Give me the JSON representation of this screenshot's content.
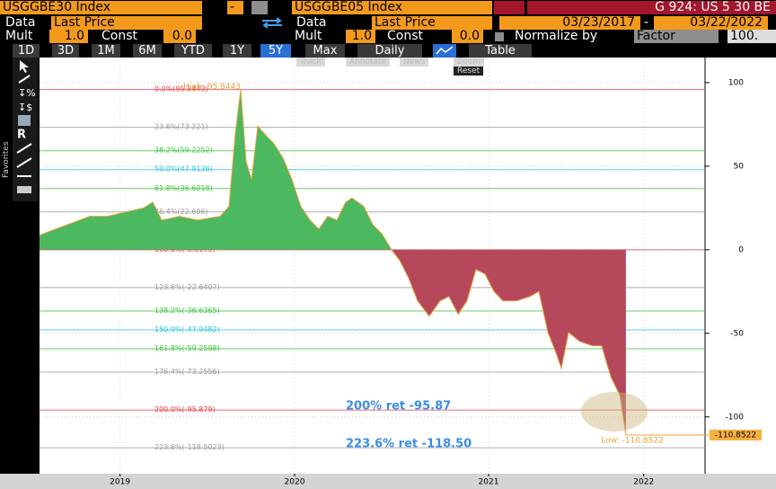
{
  "ui": {
    "row1": {
      "security1": "USGGBE30 Index",
      "dash": "-",
      "security2": "USGGBE05 Index",
      "chart_id": "G 924: US 5 30 BE"
    },
    "row2": {
      "data1": "Data",
      "field1": "Last Price",
      "data2": "Data",
      "field2": "Last Price",
      "start": "03/23/2017",
      "dash": "-",
      "end": "03/22/2022"
    },
    "row3": {
      "mult1": "Mult",
      "mult1_val": "1.0",
      "const1": "Const",
      "const1_val": "0.0",
      "mult2": "Mult",
      "mult2_val": "1.0",
      "const2": "Const",
      "const2_val": "0.0",
      "normalize": "Normalize by",
      "factor": "Factor",
      "factor_val": "100."
    },
    "periods": [
      "1D",
      "3D",
      "1M",
      "6M",
      "YTD",
      "1Y",
      "5Y",
      "Max"
    ],
    "frequency": "Daily",
    "table": "Table",
    "tools": [
      "Track",
      "Annotate",
      "News",
      "Zoom"
    ],
    "reset": "Reset",
    "favorites": "Favorites"
  },
  "chart_data": {
    "type": "area",
    "x": [
      2019.185,
      2019.259,
      2019.352,
      2019.444,
      2019.537,
      2019.63,
      2019.722,
      2019.769,
      2019.815,
      2019.907,
      2020.0,
      2020.116,
      2020.162,
      2020.194,
      2020.222,
      2020.25,
      2020.278,
      2020.31,
      2020.347,
      2020.394,
      2020.44,
      2020.486,
      2020.532,
      2020.579,
      2020.625,
      2020.671,
      2020.718,
      2020.764,
      2020.796,
      2020.856,
      2020.903,
      2020.949,
      2021.0,
      2021.042,
      2021.088,
      2021.134,
      2021.194,
      2021.25,
      2021.296,
      2021.343,
      2021.389,
      2021.435,
      2021.481,
      2021.528,
      2021.574,
      2021.644,
      2021.713,
      2021.759,
      2021.806,
      2021.852,
      2021.875,
      2021.912,
      2021.968,
      2022.037,
      2022.083,
      2022.13,
      2022.176,
      2022.208
    ],
    "values": [
      8.6,
      12,
      16,
      20,
      20,
      22.6,
      25,
      28.5,
      17.7,
      20,
      17.7,
      20,
      26,
      69,
      95.8443,
      52.7,
      42,
      74,
      69,
      63.4,
      55,
      42,
      26,
      17.7,
      12.4,
      20,
      17.7,
      28.5,
      31,
      26,
      15,
      9.7,
      0,
      -6.5,
      -17,
      -30.6,
      -39.8,
      -30.6,
      -28,
      -38.7,
      -30.6,
      -11.8,
      -14.5,
      -25,
      -30.6,
      -30.6,
      -28,
      -25,
      -49.5,
      -63,
      -71,
      -49.5,
      -54.8,
      -57.5,
      -57.5,
      -76,
      -87,
      -110.8522
    ],
    "color_positive": "#4cb860",
    "color_negative": "#b5495b",
    "line_color": "#e8a23a",
    "xlim": [
      2019.185,
      2022.616
    ],
    "ylim": [
      -134,
      115
    ],
    "xticks": [
      {
        "value": 2019.6,
        "label": "2019"
      },
      {
        "value": 2020.5,
        "label": "2020"
      },
      {
        "value": 2021.5,
        "label": "2021"
      },
      {
        "value": 2022.3,
        "label": "2022"
      }
    ],
    "yticks": [
      100,
      50,
      0,
      -50,
      -100
    ],
    "grid": true,
    "fib_levels": [
      {
        "label": "0.0%(95.8443)",
        "value": 95.8443,
        "color": "#e8404a"
      },
      {
        "label": "23.6%(73.221)",
        "value": 73.221,
        "color": "#9a9a9a"
      },
      {
        "label": "38.2%(59.2252)",
        "value": 59.2252,
        "color": "#3cc63c"
      },
      {
        "label": "50.0%(47.9136)",
        "value": 47.9136,
        "color": "#2ec4e0"
      },
      {
        "label": "61.8%(36.6018)",
        "value": 36.6018,
        "color": "#3cc63c"
      },
      {
        "label": "76.4%(22.606)",
        "value": 22.606,
        "color": "#9a9a9a"
      },
      {
        "label": "100.0%(-0.0173)",
        "value": -0.0173,
        "color": "#e8404a"
      },
      {
        "label": "123.6%(-22.6407)",
        "value": -22.6407,
        "color": "#9a9a9a"
      },
      {
        "label": "138.2%(-36.6365)",
        "value": -36.6365,
        "color": "#3cc63c"
      },
      {
        "label": "150.0%(-47.9482)",
        "value": -47.9482,
        "color": "#2ec4e0"
      },
      {
        "label": "161.8%(-59.2598)",
        "value": -59.2598,
        "color": "#3cc63c"
      },
      {
        "label": "176.4%(-73.2556)",
        "value": -73.2556,
        "color": "#9a9a9a"
      },
      {
        "label": "200.0%(-95.879)",
        "value": -95.879,
        "color": "#e8404a"
      },
      {
        "label": "223.6%(-118.5023)",
        "value": -118.5023,
        "color": "#9a9a9a"
      }
    ],
    "annotations": {
      "ret200": "200% ret -95.87",
      "ret223": "223.6% ret -118.50",
      "low": "Low: -110.8522",
      "high": "High: 95.8443"
    }
  }
}
